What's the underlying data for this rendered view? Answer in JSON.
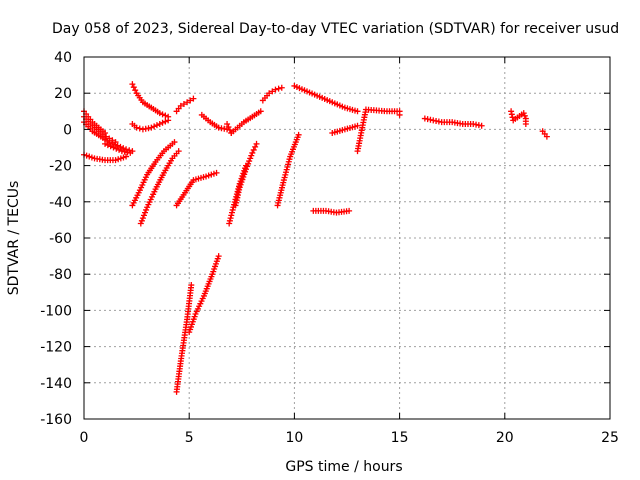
{
  "chart_data": {
    "type": "scatter",
    "title": "Day 058 of 2023, Sidereal Day-to-day VTEC variation (SDTVAR) for receiver usud",
    "xlabel": "GPS time / hours",
    "ylabel": "SDTVAR / TECUs",
    "xlim": [
      0,
      25
    ],
    "ylim": [
      -160,
      40
    ],
    "xticks": [
      0,
      5,
      10,
      15,
      20,
      25
    ],
    "yticks": [
      40,
      20,
      0,
      -20,
      -40,
      -60,
      -80,
      -100,
      -120,
      -140,
      -160
    ],
    "grid": true,
    "marker": "+",
    "color": "#ff0000",
    "series": [
      {
        "name": "seg-01",
        "x": [
          0.0,
          0.2,
          0.4,
          0.6,
          0.8,
          1.0
        ],
        "y": [
          10,
          7,
          4,
          2,
          0,
          -2
        ]
      },
      {
        "name": "seg-02",
        "x": [
          0.0,
          0.3,
          0.6,
          0.9,
          1.2,
          1.5
        ],
        "y": [
          7,
          3,
          0,
          -3,
          -5,
          -7
        ]
      },
      {
        "name": "seg-03",
        "x": [
          0.0,
          0.4,
          0.8,
          1.2,
          1.6,
          2.0,
          2.3
        ],
        "y": [
          4,
          -1,
          -4,
          -7,
          -9,
          -11,
          -12
        ]
      },
      {
        "name": "seg-04",
        "x": [
          0.0,
          0.5,
          1.0,
          1.5,
          2.0
        ],
        "y": [
          -14,
          -16,
          -17,
          -17,
          -15
        ]
      },
      {
        "name": "seg-05",
        "x": [
          1.0,
          1.4,
          1.8,
          2.2
        ],
        "y": [
          -8,
          -10,
          -12,
          -13
        ]
      },
      {
        "name": "seg-06",
        "x": [
          2.3,
          2.5,
          2.8,
          3.2,
          3.6,
          4.0
        ],
        "y": [
          25,
          20,
          15,
          12,
          9,
          7
        ]
      },
      {
        "name": "seg-07",
        "x": [
          2.3,
          2.5,
          2.8,
          3.2,
          3.6,
          4.0
        ],
        "y": [
          3,
          1,
          0,
          1,
          3,
          5
        ]
      },
      {
        "name": "seg-08",
        "x": [
          2.3,
          2.6,
          3.0,
          3.4,
          3.8,
          4.3
        ],
        "y": [
          -42,
          -35,
          -25,
          -18,
          -12,
          -7
        ]
      },
      {
        "name": "seg-09",
        "x": [
          2.7,
          3.0,
          3.4,
          3.8,
          4.2,
          4.5
        ],
        "y": [
          -52,
          -43,
          -33,
          -24,
          -16,
          -12
        ]
      },
      {
        "name": "seg-10",
        "x": [
          4.4,
          4.6,
          4.9,
          5.2
        ],
        "y": [
          10,
          13,
          15,
          17
        ]
      },
      {
        "name": "seg-11",
        "x": [
          4.4,
          4.8,
          5.2,
          5.8,
          6.3
        ],
        "y": [
          -42,
          -35,
          -28,
          -26,
          -24
        ]
      },
      {
        "name": "seg-12",
        "x": [
          4.4,
          4.6,
          4.9,
          5.1
        ],
        "y": [
          -145,
          -128,
          -105,
          -86
        ]
      },
      {
        "name": "seg-13",
        "x": [
          5.0,
          5.3,
          5.7,
          6.1,
          6.4
        ],
        "y": [
          -112,
          -102,
          -92,
          -80,
          -70
        ]
      },
      {
        "name": "seg-14",
        "x": [
          5.6,
          6.0,
          6.4,
          6.8
        ],
        "y": [
          8,
          4,
          1,
          0
        ]
      },
      {
        "name": "seg-15",
        "x": [
          6.8,
          7.0
        ],
        "y": [
          3,
          -2
        ]
      },
      {
        "name": "seg-16",
        "x": [
          7.0,
          7.3,
          7.6,
          8.0,
          8.4
        ],
        "y": [
          -2,
          1,
          4,
          7,
          10
        ]
      },
      {
        "name": "seg-17",
        "x": [
          6.9,
          7.1,
          7.4,
          7.7
        ],
        "y": [
          -52,
          -43,
          -30,
          -20
        ]
      },
      {
        "name": "seg-18",
        "x": [
          7.2,
          7.4,
          7.7,
          8.0,
          8.2
        ],
        "y": [
          -42,
          -32,
          -22,
          -13,
          -8
        ]
      },
      {
        "name": "seg-19",
        "x": [
          8.5,
          8.8,
          9.1,
          9.4
        ],
        "y": [
          16,
          20,
          22,
          23
        ]
      },
      {
        "name": "seg-20",
        "x": [
          9.2,
          9.5,
          9.8,
          10.2
        ],
        "y": [
          -42,
          -28,
          -15,
          -3
        ]
      },
      {
        "name": "seg-21",
        "x": [
          10.0,
          10.6,
          11.2,
          11.8,
          12.4,
          13.0
        ],
        "y": [
          24,
          21,
          18,
          15,
          12,
          10
        ]
      },
      {
        "name": "seg-22",
        "x": [
          10.9,
          11.5,
          12.0,
          12.6
        ],
        "y": [
          -45,
          -45,
          -46,
          -45
        ]
      },
      {
        "name": "seg-23",
        "x": [
          11.8,
          12.4,
          13.0
        ],
        "y": [
          -2,
          0,
          2
        ]
      },
      {
        "name": "seg-24",
        "x": [
          13.0,
          13.4,
          14.4,
          15.0,
          15.0
        ],
        "y": [
          -12,
          11,
          10,
          10,
          8
        ]
      },
      {
        "name": "seg-25",
        "x": [
          16.2,
          16.6,
          17.0,
          17.5,
          18.0,
          18.5,
          18.9
        ],
        "y": [
          6,
          5,
          4,
          4,
          3,
          3,
          2
        ]
      },
      {
        "name": "seg-26",
        "x": [
          20.3,
          20.4,
          20.9,
          21.0,
          21.0
        ],
        "y": [
          10,
          5,
          9,
          6,
          3
        ]
      },
      {
        "name": "seg-27",
        "x": [
          21.8,
          22.0
        ],
        "y": [
          -1,
          -4
        ]
      }
    ]
  }
}
